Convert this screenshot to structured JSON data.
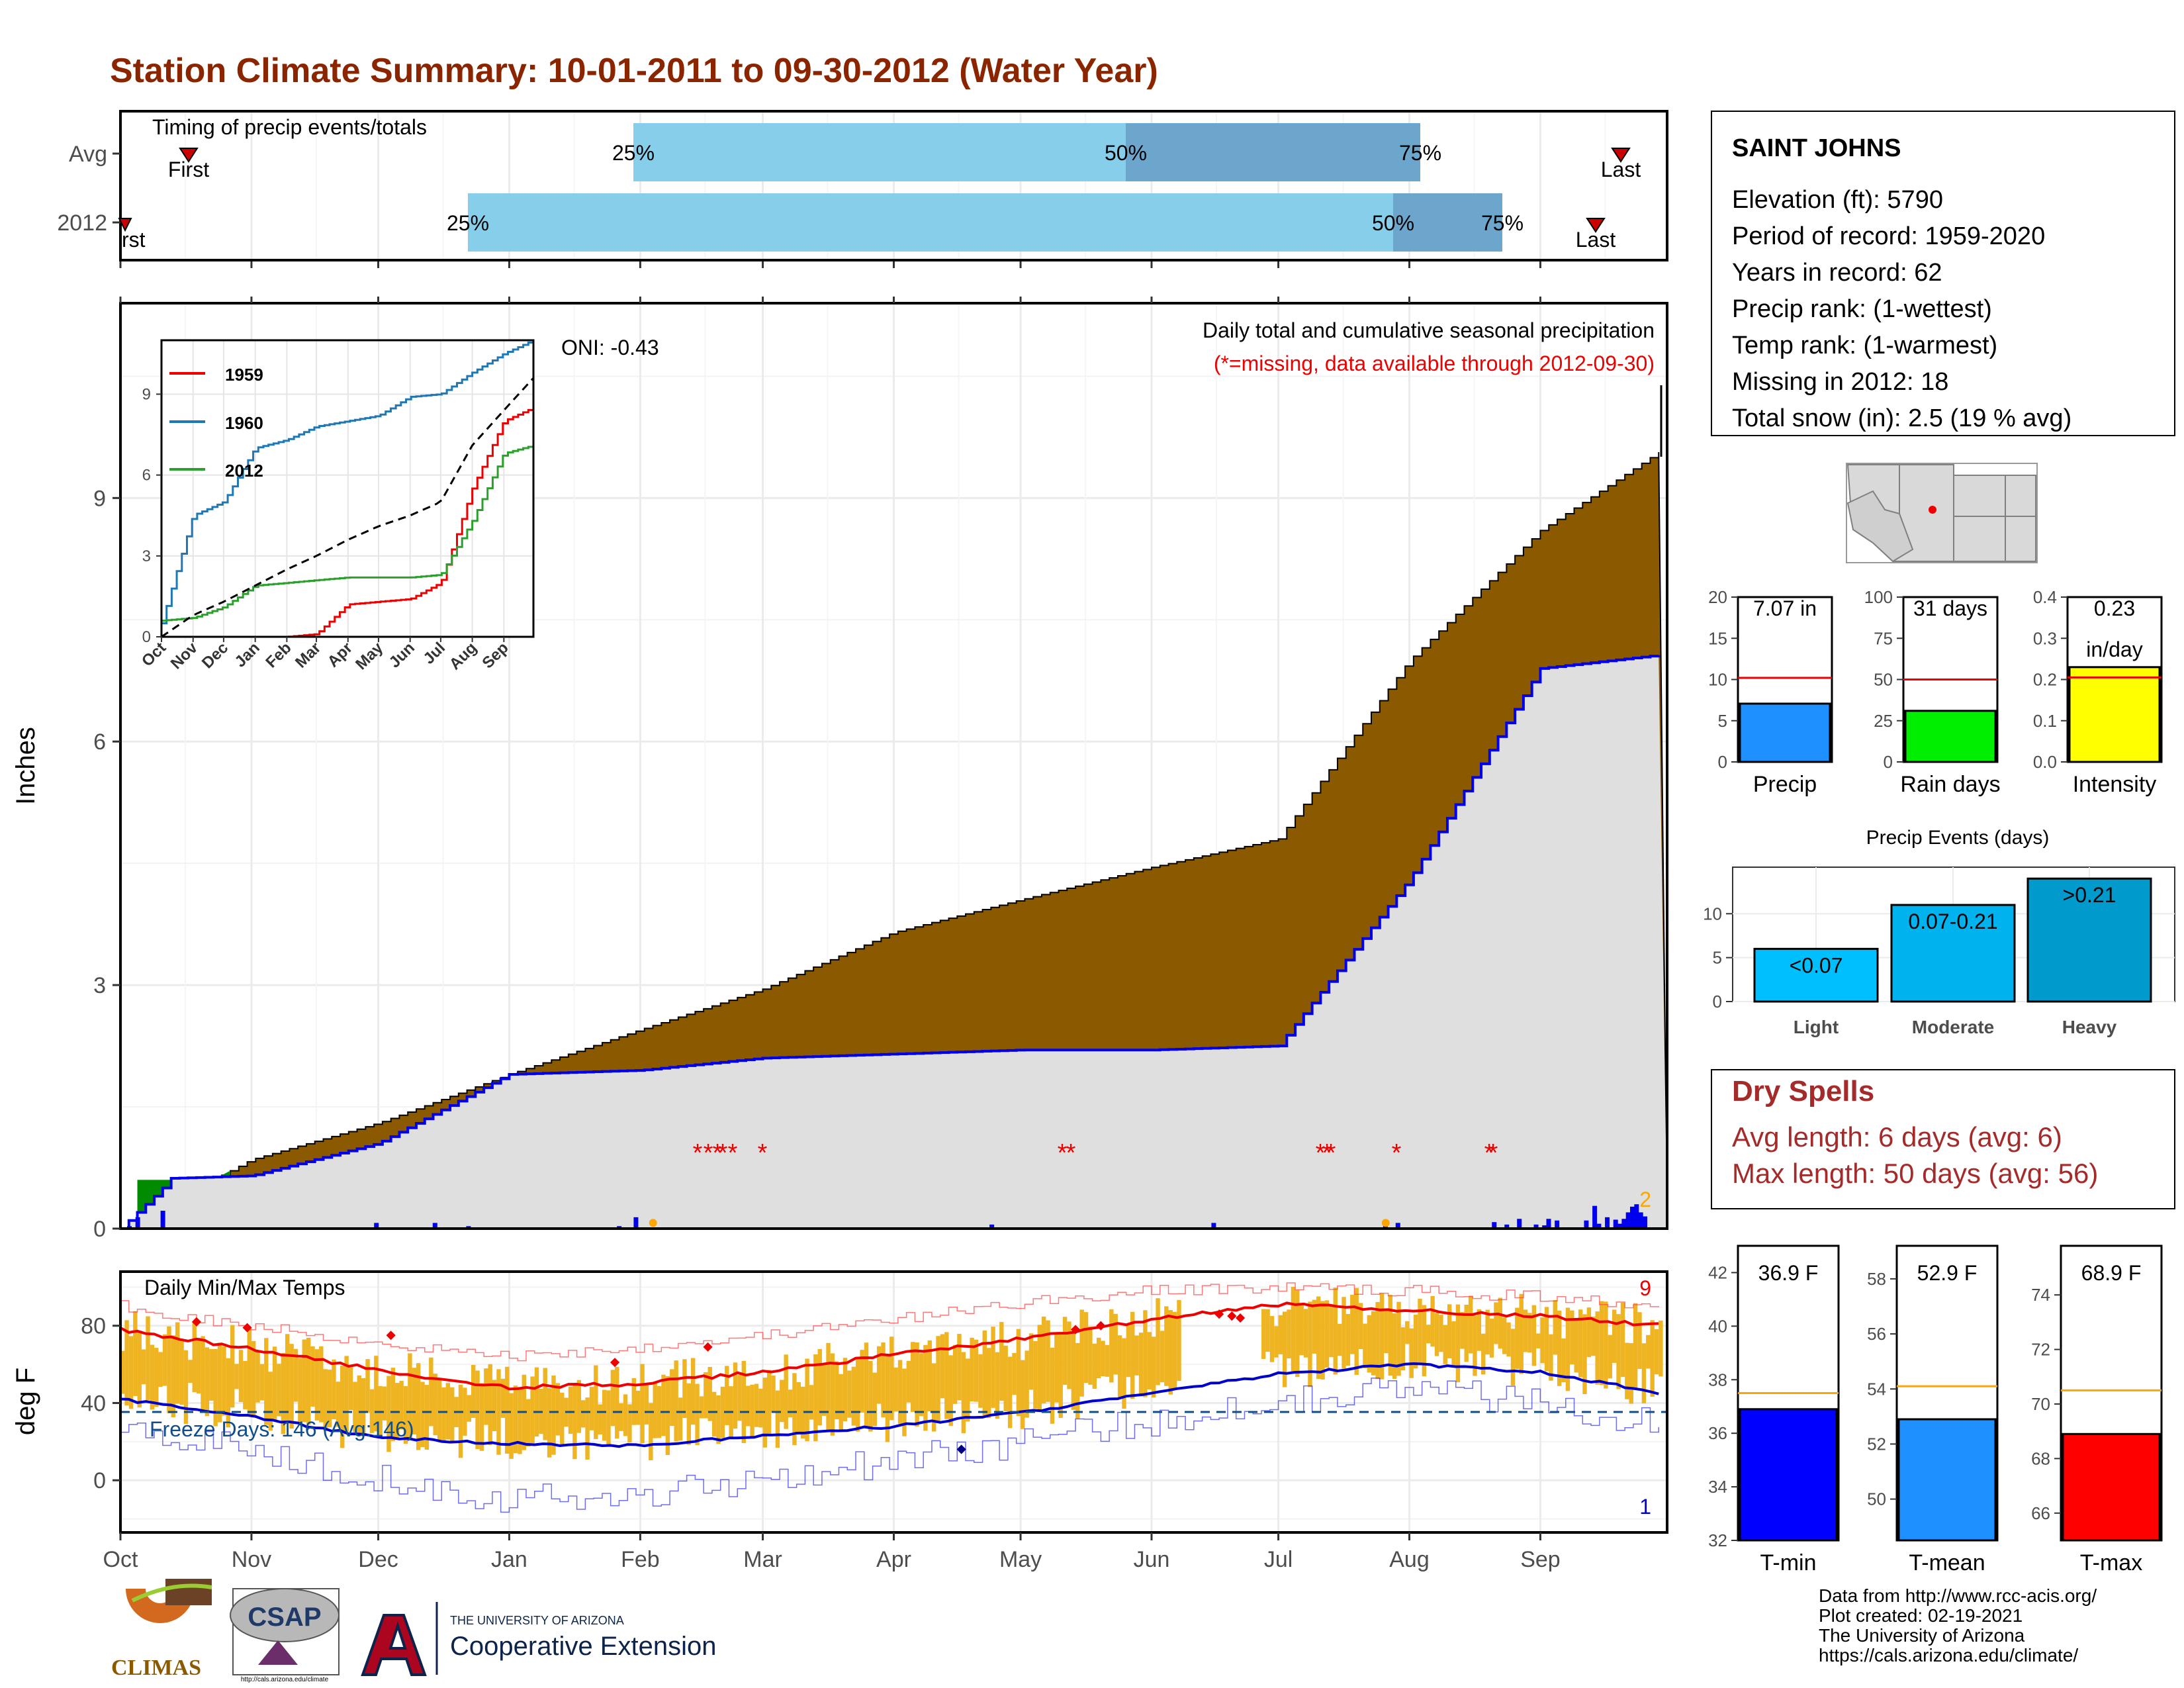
{
  "title": "Station Climate Summary: 10-01-2011 to 09-30-2012 (Water Year)",
  "colors": {
    "title": "#8B2500",
    "light_blue": "#87CEEB",
    "mid_blue": "#6CA6CD",
    "brown": "#8B5A00",
    "green": "#008B00",
    "gray_fill": "#DFDFDF",
    "obs_line": "#0000EE",
    "orange": "#EEB422",
    "red": "#EE0000",
    "blue": "#0000CD",
    "dry": "#A52A2A"
  },
  "timing": {
    "title": "Timing of precip events/totals",
    "rows": [
      {
        "label": "Avg",
        "first": "First",
        "last": "Last",
        "p25": "25%",
        "p50": "50%",
        "p75": "75%"
      },
      {
        "label": "2012",
        "first": "rst",
        "last": "Last",
        "p25": "25%",
        "p50": "50%",
        "p75": "75%"
      }
    ]
  },
  "months": [
    "Oct",
    "Nov",
    "Dec",
    "Jan",
    "Feb",
    "Mar",
    "Apr",
    "May",
    "Jun",
    "Jul",
    "Aug",
    "Sep"
  ],
  "precip_panel": {
    "ylabel": "Inches",
    "yticks": [
      "0",
      "3",
      "6",
      "9"
    ],
    "caption1": "Daily total and cumulative seasonal precipitation",
    "caption2": "(*=missing, data available through 2012-09-30)",
    "oni": "ONI: -0.43",
    "corner_count": "2"
  },
  "inset": {
    "yticks": [
      "0",
      "3",
      "6",
      "9"
    ],
    "months": [
      "Oct",
      "Nov",
      "Dec",
      "Jan",
      "Feb",
      "Mar",
      "Apr",
      "May",
      "Jun",
      "Jul",
      "Aug",
      "Sep"
    ],
    "legend": [
      "1959",
      "1960",
      "2012"
    ]
  },
  "temp_panel": {
    "title": "Daily Min/Max Temps",
    "ylabel": "deg F",
    "yticks": [
      "0",
      "40",
      "80"
    ],
    "freeze": "Freeze Days: 146 (Avg:146)",
    "count_max": "9",
    "count_min": "1"
  },
  "station": {
    "name": "SAINT JOHNS",
    "lines": [
      "Elevation (ft): 5790",
      "Period of record: 1959-2020",
      "Years in record: 62",
      "Precip rank:  (1-wettest)",
      "Temp rank:  (1-warmest)",
      "Missing in 2012: 18",
      "Total snow (in): 2.5 (19 % avg)"
    ]
  },
  "summary_bars": [
    {
      "label": "Precip",
      "value_text": "7.07 in",
      "value": 7.07,
      "avg": 10.2,
      "max": 20,
      "ticks": [
        "0",
        "5",
        "10",
        "15",
        "20"
      ],
      "color": "#1E90FF"
    },
    {
      "label": "Rain days",
      "value_text": "31 days",
      "value": 31,
      "avg": 50,
      "max": 100,
      "ticks": [
        "0",
        "25",
        "50",
        "75",
        "100"
      ],
      "color": "#00EE00"
    },
    {
      "label": "Intensity",
      "value_text": "0.23",
      "value_text2": "in/day",
      "value": 0.23,
      "avg": 0.205,
      "max": 0.4,
      "ticks": [
        "0.0",
        "0.1",
        "0.2",
        "0.3",
        "0.4"
      ],
      "color": "#FFFF00"
    }
  ],
  "events": {
    "title": "Precip Events (days)",
    "yticks": [
      "0",
      "5",
      "10"
    ],
    "bars": [
      {
        "cat": "Light",
        "label": "<0.07",
        "value": 6,
        "color": "#00BFFF"
      },
      {
        "cat": "Moderate",
        "label": "0.07-0.21",
        "value": 11,
        "color": "#00B2EE"
      },
      {
        "cat": "Heavy",
        "label": ">0.21",
        "value": 14,
        "color": "#009ACD"
      }
    ]
  },
  "dry_spells": {
    "title": "Dry Spells",
    "line1": "Avg length: 6 days (avg: 6)",
    "line2": "Max length: 50 days (avg: 56)"
  },
  "temp_bars": [
    {
      "label": "T-min",
      "value_text": "36.9 F",
      "value": 36.9,
      "avg": 37.5,
      "min": 32,
      "max": 43,
      "ticks": [
        "32",
        "34",
        "36",
        "38",
        "40",
        "42"
      ],
      "color": "#0000FF"
    },
    {
      "label": "T-mean",
      "value_text": "52.9 F",
      "value": 52.9,
      "avg": 54.1,
      "min": 48.5,
      "max": 59.2,
      "ticks": [
        "50",
        "52",
        "54",
        "56",
        "58"
      ],
      "color": "#1E90FF"
    },
    {
      "label": "T-max",
      "value_text": "68.9 F",
      "value": 68.9,
      "avg": 70.5,
      "min": 65,
      "max": 75.8,
      "ticks": [
        "66",
        "68",
        "70",
        "72",
        "74"
      ],
      "color": "#FF0000"
    }
  ],
  "footer": [
    "Data from http://www.rcc-acis.org/",
    "Plot created: 02-19-2021",
    "The University of Arizona",
    "https://cals.arizona.edu/climate/"
  ],
  "logos": {
    "climas": "CLIMAS",
    "csap": "CSAP",
    "csap_url": "http://cals.arizona.edu/climate",
    "ua_top": "THE UNIVERSITY OF ARIZONA",
    "ua_main": "Cooperative Extension"
  },
  "chart_data": [
    {
      "type": "area",
      "title": "Daily total and cumulative seasonal precipitation",
      "ylabel": "Inches",
      "ylim": [
        0,
        11.4
      ],
      "x": [
        "Oct",
        "Nov",
        "Dec",
        "Jan",
        "Feb",
        "Mar",
        "Apr",
        "May",
        "Jun",
        "Jul",
        "Aug",
        "Sep",
        "Sep-30"
      ],
      "series": [
        {
          "name": "Avg",
          "values": [
            0,
            0.85,
            1.3,
            1.9,
            2.45,
            2.95,
            3.65,
            4.05,
            4.45,
            4.8,
            7.0,
            8.6,
            9.6
          ]
        },
        {
          "name": "2012",
          "values": [
            0.6,
            0.65,
            1.05,
            1.9,
            1.95,
            2.1,
            2.15,
            2.2,
            2.2,
            2.25,
            4.3,
            6.9,
            7.07
          ]
        }
      ]
    },
    {
      "type": "line",
      "title": "",
      "ylim": [
        0,
        11
      ],
      "x": [
        "Oct",
        "Nov",
        "Dec",
        "Jan",
        "Feb",
        "Mar",
        "Apr",
        "May",
        "Jun",
        "Jul",
        "Aug",
        "Sep",
        "Sep-30"
      ],
      "series": [
        {
          "name": "1959",
          "values": [
            0,
            0,
            0,
            0,
            0,
            0.1,
            1.2,
            1.3,
            1.4,
            2,
            5.5,
            8,
            8.5
          ]
        },
        {
          "name": "1960",
          "values": [
            0.5,
            4.5,
            5,
            7,
            7.3,
            7.8,
            8,
            8.2,
            8.9,
            9,
            9.8,
            10.5,
            11
          ]
        },
        {
          "name": "2012",
          "values": [
            0.6,
            0.7,
            1.1,
            1.9,
            2,
            2.1,
            2.2,
            2.2,
            2.2,
            2.3,
            4.3,
            6.8,
            7.1
          ]
        },
        {
          "name": "Avg",
          "values": [
            0,
            0.8,
            1.3,
            1.9,
            2.5,
            3,
            3.6,
            4.1,
            4.5,
            5,
            7.1,
            8.4,
            9.6
          ]
        }
      ]
    },
    {
      "type": "line",
      "title": "Daily Min/Max Temps",
      "ylabel": "deg F",
      "ylim": [
        -27,
        108
      ],
      "x": [
        "Oct",
        "Nov",
        "Dec",
        "Jan",
        "Feb",
        "Mar",
        "Apr",
        "May",
        "Jun",
        "Jul",
        "Aug",
        "Sep",
        "Sep-30"
      ],
      "series": [
        {
          "name": "Avg max",
          "values": [
            78,
            68,
            57,
            48,
            50,
            56,
            65,
            73,
            83,
            91,
            88,
            85,
            80
          ]
        },
        {
          "name": "Avg min",
          "values": [
            42,
            33,
            22,
            19,
            18,
            23,
            28,
            35,
            45,
            55,
            60,
            56,
            45
          ]
        },
        {
          "name": "Record max",
          "values": [
            90,
            80,
            71,
            64,
            69,
            75,
            83,
            92,
            98,
            100,
            98,
            95,
            91
          ]
        },
        {
          "name": "Record min",
          "values": [
            30,
            15,
            2,
            -10,
            -8,
            2,
            10,
            20,
            30,
            42,
            48,
            40,
            30
          ]
        }
      ],
      "freeze_line": 32
    }
  ]
}
